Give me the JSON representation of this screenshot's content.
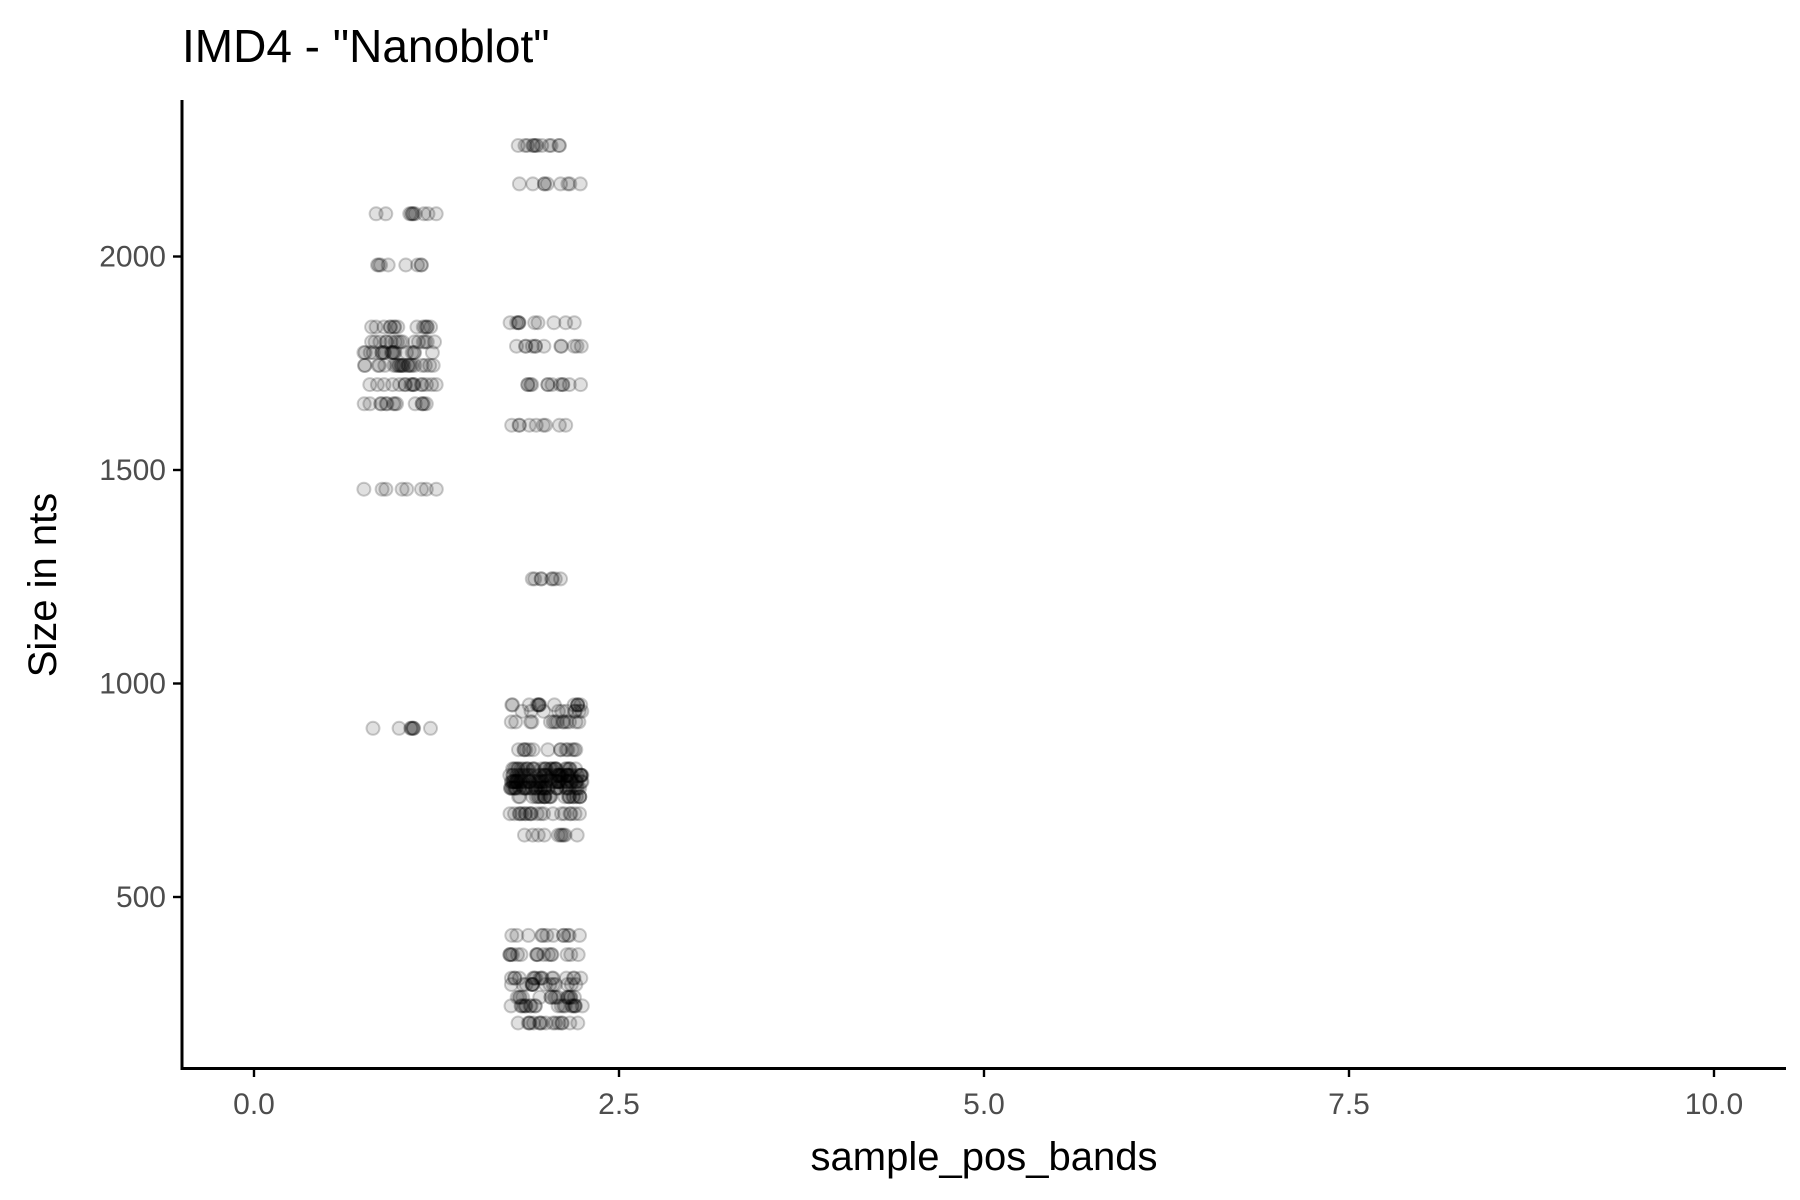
{
  "chart_data": {
    "type": "scatter",
    "title": "IMD4 - \"Nanoblot\"",
    "xlabel": "sample_pos_bands",
    "ylabel": "Size in nts",
    "xlim": [
      -0.5,
      10.5
    ],
    "ylim": [
      130,
      2500
    ],
    "x_ticks": [
      0.0,
      2.5,
      5.0,
      7.5,
      10.0
    ],
    "x_tick_labels": [
      "0.0",
      "2.5",
      "5.0",
      "7.5",
      "10.0"
    ],
    "y_ticks": [
      500,
      1000,
      1500,
      2000
    ],
    "y_tick_labels": [
      "500",
      "1000",
      "1500",
      "2000"
    ],
    "grid": false,
    "legend": "none",
    "point_color": "#000000",
    "point_alpha": 0.15,
    "jitter_width": 0.25,
    "series": [
      {
        "group": 1,
        "bands": [
          {
            "y": 2100,
            "n": 10
          },
          {
            "y": 1980,
            "n": 8
          },
          {
            "y": 1835,
            "n": 14
          },
          {
            "y": 1800,
            "n": 16
          },
          {
            "y": 1775,
            "n": 18
          },
          {
            "y": 1745,
            "n": 22
          },
          {
            "y": 1700,
            "n": 16
          },
          {
            "y": 1655,
            "n": 14
          },
          {
            "y": 1455,
            "n": 8
          },
          {
            "y": 895,
            "n": 8
          }
        ]
      },
      {
        "group": 2,
        "bands": [
          {
            "y": 2260,
            "n": 12
          },
          {
            "y": 2170,
            "n": 9
          },
          {
            "y": 1845,
            "n": 10
          },
          {
            "y": 1790,
            "n": 12
          },
          {
            "y": 1700,
            "n": 12
          },
          {
            "y": 1605,
            "n": 9
          },
          {
            "y": 1245,
            "n": 8
          },
          {
            "y": 950,
            "n": 14
          },
          {
            "y": 935,
            "n": 10
          },
          {
            "y": 910,
            "n": 14
          },
          {
            "y": 845,
            "n": 14
          },
          {
            "y": 800,
            "n": 30
          },
          {
            "y": 785,
            "n": 40
          },
          {
            "y": 770,
            "n": 50
          },
          {
            "y": 755,
            "n": 40
          },
          {
            "y": 735,
            "n": 24
          },
          {
            "y": 695,
            "n": 20
          },
          {
            "y": 645,
            "n": 10
          },
          {
            "y": 410,
            "n": 12
          },
          {
            "y": 365,
            "n": 16
          },
          {
            "y": 310,
            "n": 16
          },
          {
            "y": 295,
            "n": 14
          },
          {
            "y": 265,
            "n": 16
          },
          {
            "y": 245,
            "n": 20
          },
          {
            "y": 205,
            "n": 16
          }
        ]
      }
    ]
  }
}
